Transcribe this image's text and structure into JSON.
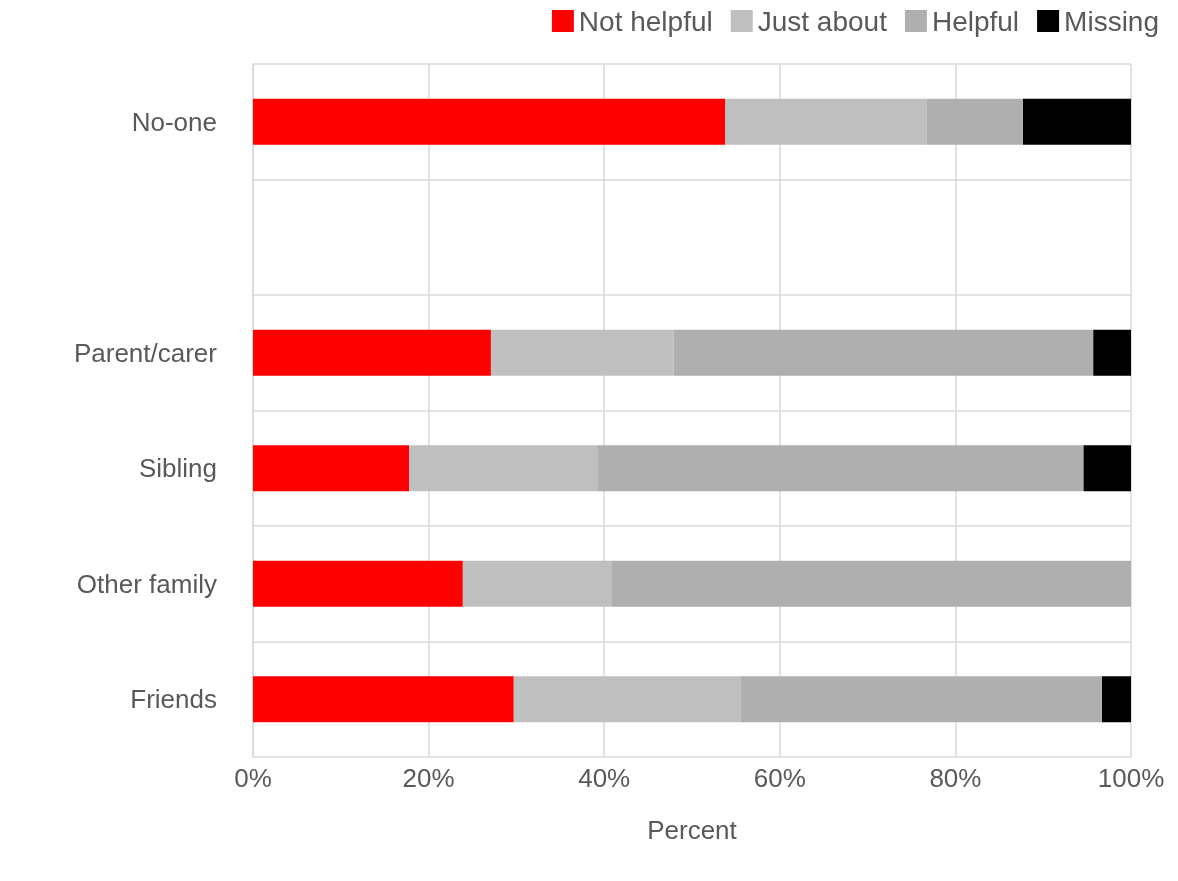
{
  "chart_data": {
    "type": "bar",
    "orientation": "horizontal",
    "stacked": true,
    "xlabel": "Percent",
    "categories": [
      "No-one",
      null,
      "Parent/carer",
      "Sibling",
      "Other family",
      "Friends"
    ],
    "series": [
      {
        "name": "Not helpful",
        "color": "#ff0000",
        "values": [
          53.8,
          null,
          27.1,
          17.8,
          23.9,
          29.7
        ]
      },
      {
        "name": "Just about",
        "color": "#bfbfbf",
        "values": [
          22.9,
          null,
          20.8,
          21.4,
          16.9,
          25.8
        ]
      },
      {
        "name": "Helpful",
        "color": "#afafaf",
        "values": [
          11.0,
          null,
          47.8,
          55.4,
          59.2,
          41.2
        ]
      },
      {
        "name": "Missing",
        "color": "#000000",
        "values": [
          12.3,
          null,
          4.3,
          5.4,
          0,
          3.3
        ]
      }
    ],
    "xlim": [
      0,
      100
    ],
    "xticks": [
      {
        "value": 0,
        "label": "0%"
      },
      {
        "value": 20,
        "label": "20%"
      },
      {
        "value": 40,
        "label": "40%"
      },
      {
        "value": 60,
        "label": "60%"
      },
      {
        "value": 80,
        "label": "80%"
      },
      {
        "value": 100,
        "label": "100%"
      }
    ],
    "grid": true,
    "legend": "top right"
  }
}
